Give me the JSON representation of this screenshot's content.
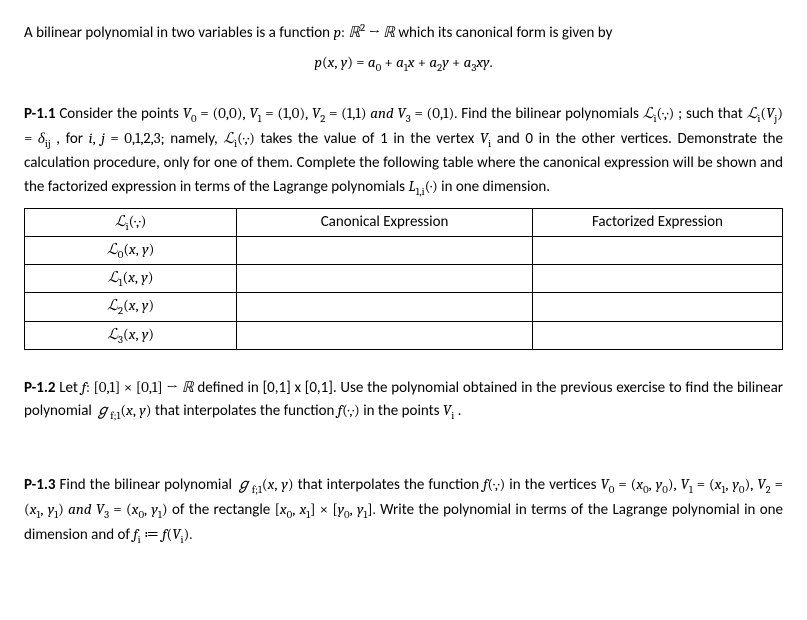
{
  "intro": {
    "line1_pre": "A bilinear polynomial in two variables is a function ",
    "line1_fn": "p: ℝ² → ℝ",
    "line1_post": " which its canonical form is given by",
    "equation": "p(x, y) = a₀ + a₁x + a₂y + a₃xy."
  },
  "p11": {
    "label": "P-1.1",
    "t1": "  Consider   the   points  ",
    "pts": "V₀ = (0,0), V₁ = (1,0), V₂ = (1,1) and V₃ = (0,1).",
    "t2": "   Find   the   bilinear polynomials ",
    "li": "ℒᵢ(·,·)",
    "t3": "; such that ",
    "cond": "ℒᵢ(Vⱼ) = δᵢⱼ",
    "t4": ", for ",
    "ij": "i, j = 0,1,2,3;",
    "t5": " namely, ",
    "li2": "ℒᵢ(·,·)",
    "t6": " takes the value of 1 in the vertex ",
    "vi": "Vᵢ",
    "t7": " and 0 in the other vertices. Demonstrate the calculation procedure, only for one of them. Complete the following table where the canonical expression will be shown and the factorized expression in terms of the Lagrange polynomials ",
    "l1i": "L₁,ᵢ(·)",
    "t8": " in one dimension.",
    "table": {
      "h1": "ℒᵢ(·,·)",
      "h2": "Canonical Expression",
      "h3": "Factorized Expression",
      "r0": "ℒ₀(x, y)",
      "r1": "ℒ₁(x, y)",
      "r2": "ℒ₂(x, y)",
      "r3": "ℒ₃(x, y)"
    }
  },
  "p12": {
    "label": "P-1.2",
    "t1": " Let ",
    "fdef": "f: [0,1] × [0,1] → ℝ",
    "t2": " defined in [0,1] x [0,1]. Use the polynomial obtained in the previous exercise to find the bilinear polynomial ",
    "g": "ℊf;1(x, y)",
    "t3": " that interpolates the function ",
    "fxy": "f(·,·)",
    "t4": " in the points ",
    "vi": "Vᵢ",
    "t5": "."
  },
  "p13": {
    "label": "P-1.3",
    "t1": " Find the bilinear polynomial ",
    "g": "ℊf;1(x, y)",
    "t2": " that interpolates the function ",
    "fxy": "f(·,·)",
    "t3": " in the vertices ",
    "verts": "V₀ = (x₀, y₀), V₁ = (x₁, y₀), V₂ = (x₁, y₁) and V₃ = (x₀, y₁)",
    "t4": "of the rectangle ",
    "rect": "[x₀, x₁] × [y₀, y₁].",
    "t5": " Write the polynomial in terms of the Lagrange polynomial in one dimension and of ",
    "fi": "fᵢ ≔ f(Vᵢ).",
    "t6": ""
  }
}
